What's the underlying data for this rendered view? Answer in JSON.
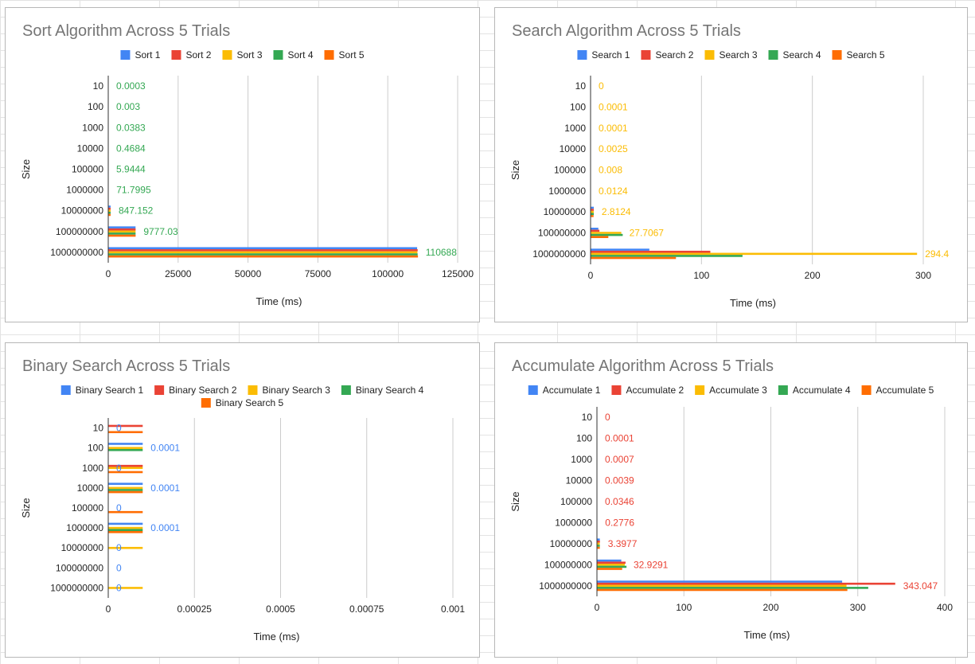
{
  "chart_data": [
    {
      "type": "bar",
      "orientation": "horizontal",
      "title": "Sort Algorithm Across 5 Trials",
      "xlabel": "Time (ms)",
      "ylabel": "Size",
      "categories": [
        "10",
        "100",
        "1000",
        "10000",
        "100000",
        "1000000",
        "10000000",
        "100000000",
        "1000000000"
      ],
      "xlim": [
        0,
        125000
      ],
      "xticks": [
        0,
        25000,
        50000,
        75000,
        100000,
        125000
      ],
      "xtick_labels": [
        "0",
        "25000",
        "50000",
        "75000",
        "100000",
        "125000"
      ],
      "legend_position": "top",
      "grid": true,
      "series": [
        {
          "name": "Sort 1",
          "color": "#4285f4",
          "values": [
            0.0003,
            0.003,
            0.038,
            0.47,
            5.9,
            71.5,
            845,
            9760,
            110500
          ]
        },
        {
          "name": "Sort 2",
          "color": "#ea4335",
          "values": [
            0.0003,
            0.003,
            0.038,
            0.47,
            5.9,
            71.8,
            848,
            9790,
            110700
          ]
        },
        {
          "name": "Sort 3",
          "color": "#fbbc04",
          "values": [
            0.0003,
            0.003,
            0.038,
            0.47,
            5.9,
            71.6,
            846,
            9770,
            110600
          ]
        },
        {
          "name": "Sort 4",
          "color": "#34a853",
          "values": [
            0.0003,
            0.003,
            0.0383,
            0.4684,
            5.9444,
            71.7995,
            847.152,
            9777.03,
            110688
          ]
        },
        {
          "name": "Sort 5",
          "color": "#ff6d01",
          "values": [
            0.0003,
            0.003,
            0.038,
            0.47,
            5.9,
            71.9,
            849,
            9790,
            110800
          ]
        }
      ],
      "data_labels": {
        "series_index": 3,
        "color": "#34a853",
        "texts": [
          "0.0003",
          "0.003",
          "0.0383",
          "0.4684",
          "5.9444",
          "71.7995",
          "847.152",
          "9777.03",
          "110688"
        ]
      }
    },
    {
      "type": "bar",
      "orientation": "horizontal",
      "title": "Search Algorithm Across 5 Trials",
      "xlabel": "Time (ms)",
      "ylabel": "Size",
      "categories": [
        "10",
        "100",
        "1000",
        "10000",
        "100000",
        "1000000",
        "10000000",
        "100000000",
        "1000000000"
      ],
      "xlim": [
        0,
        300
      ],
      "xticks": [
        0,
        100,
        200,
        300
      ],
      "xtick_labels": [
        "0",
        "100",
        "200",
        "300"
      ],
      "legend_position": "top",
      "grid": true,
      "series": [
        {
          "name": "Search 1",
          "color": "#4285f4",
          "values": [
            0,
            0.0001,
            0.0001,
            0.002,
            0.007,
            0.012,
            2.9,
            7,
            53
          ]
        },
        {
          "name": "Search 2",
          "color": "#ea4335",
          "values": [
            0,
            0.0001,
            0.0001,
            0.002,
            0.007,
            0.012,
            2.9,
            8,
            108
          ]
        },
        {
          "name": "Search 3",
          "color": "#fbbc04",
          "values": [
            0,
            0.0001,
            0.0001,
            0.0025,
            0.008,
            0.0124,
            2.8124,
            27.7067,
            294.4
          ]
        },
        {
          "name": "Search 4",
          "color": "#34a853",
          "values": [
            0,
            0.0001,
            0.0001,
            0.002,
            0.007,
            0.012,
            2.9,
            29,
            137
          ]
        },
        {
          "name": "Search 5",
          "color": "#ff6d01",
          "values": [
            0,
            0.0001,
            0.0001,
            0.002,
            0.007,
            0.012,
            2.7,
            16,
            77
          ]
        }
      ],
      "data_labels": {
        "series_index": 2,
        "color": "#fbbc04",
        "texts": [
          "0",
          "0.0001",
          "0.0001",
          "0.0025",
          "0.008",
          "0.0124",
          "2.8124",
          "27.7067",
          "294.4"
        ]
      }
    },
    {
      "type": "bar",
      "orientation": "horizontal",
      "title": "Binary Search Across 5 Trials",
      "xlabel": "Time (ms)",
      "ylabel": "Size",
      "categories": [
        "10",
        "100",
        "1000",
        "10000",
        "100000",
        "1000000",
        "10000000",
        "100000000",
        "1000000000"
      ],
      "xlim": [
        0,
        0.001
      ],
      "xticks": [
        0,
        0.00025,
        0.0005,
        0.00075,
        0.001
      ],
      "xtick_labels": [
        "0",
        "0.00025",
        "0.0005",
        "0.00075",
        "0.001"
      ],
      "legend_position": "top",
      "grid": true,
      "series": [
        {
          "name": "Binary Search 1",
          "color": "#4285f4",
          "values": [
            0,
            0.0001,
            0,
            0.0001,
            0,
            0.0001,
            0,
            0,
            0
          ]
        },
        {
          "name": "Binary Search 2",
          "color": "#ea4335",
          "values": [
            0.0001,
            0,
            0.0001,
            0,
            0,
            0,
            0,
            0,
            0
          ]
        },
        {
          "name": "Binary Search 3",
          "color": "#fbbc04",
          "values": [
            0,
            0.0001,
            0.0001,
            0.0001,
            0,
            0.0001,
            0.0001,
            0,
            0.0001
          ]
        },
        {
          "name": "Binary Search 4",
          "color": "#34a853",
          "values": [
            0,
            0.0001,
            0,
            0.0001,
            0,
            0.0001,
            0,
            0,
            0
          ]
        },
        {
          "name": "Binary Search 5",
          "color": "#ff6d01",
          "values": [
            0.0001,
            0,
            0.0001,
            0.0001,
            0.0001,
            0.0001,
            0,
            0,
            0
          ]
        }
      ],
      "data_labels": {
        "series_index": 0,
        "color": "#4285f4",
        "texts": [
          "0",
          "0.0001",
          "0",
          "0.0001",
          "0",
          "0.0001",
          "0",
          "0",
          "0"
        ]
      }
    },
    {
      "type": "bar",
      "orientation": "horizontal",
      "title": "Accumulate Algorithm Across 5 Trials",
      "xlabel": "Time (ms)",
      "ylabel": "Size",
      "categories": [
        "10",
        "100",
        "1000",
        "10000",
        "100000",
        "1000000",
        "10000000",
        "100000000",
        "1000000000"
      ],
      "xlim": [
        0,
        400
      ],
      "xticks": [
        0,
        100,
        200,
        300,
        400
      ],
      "xtick_labels": [
        "0",
        "100",
        "200",
        "300",
        "400"
      ],
      "legend_position": "top",
      "grid": true,
      "series": [
        {
          "name": "Accumulate 1",
          "color": "#4285f4",
          "values": [
            0,
            0.0001,
            0.0007,
            0.0039,
            0.034,
            0.27,
            3.3,
            28,
            282
          ]
        },
        {
          "name": "Accumulate 2",
          "color": "#ea4335",
          "values": [
            0,
            0.0001,
            0.0007,
            0.0039,
            0.0346,
            0.2776,
            3.3977,
            32.9291,
            343.047
          ]
        },
        {
          "name": "Accumulate 3",
          "color": "#fbbc04",
          "values": [
            0,
            0.0001,
            0.0007,
            0.0039,
            0.034,
            0.27,
            3.2,
            32,
            287
          ]
        },
        {
          "name": "Accumulate 4",
          "color": "#34a853",
          "values": [
            0,
            0.0001,
            0.0007,
            0.0039,
            0.034,
            0.27,
            3.3,
            34,
            312
          ]
        },
        {
          "name": "Accumulate 5",
          "color": "#ff6d01",
          "values": [
            0,
            0.0001,
            0.0007,
            0.0039,
            0.034,
            0.27,
            3.3,
            29,
            288
          ]
        }
      ],
      "data_labels": {
        "series_index": 1,
        "color": "#ea4335",
        "texts": [
          "0",
          "0.0001",
          "0.0007",
          "0.0039",
          "0.0346",
          "0.2776",
          "3.3977",
          "32.9291",
          "343.047"
        ]
      }
    }
  ]
}
